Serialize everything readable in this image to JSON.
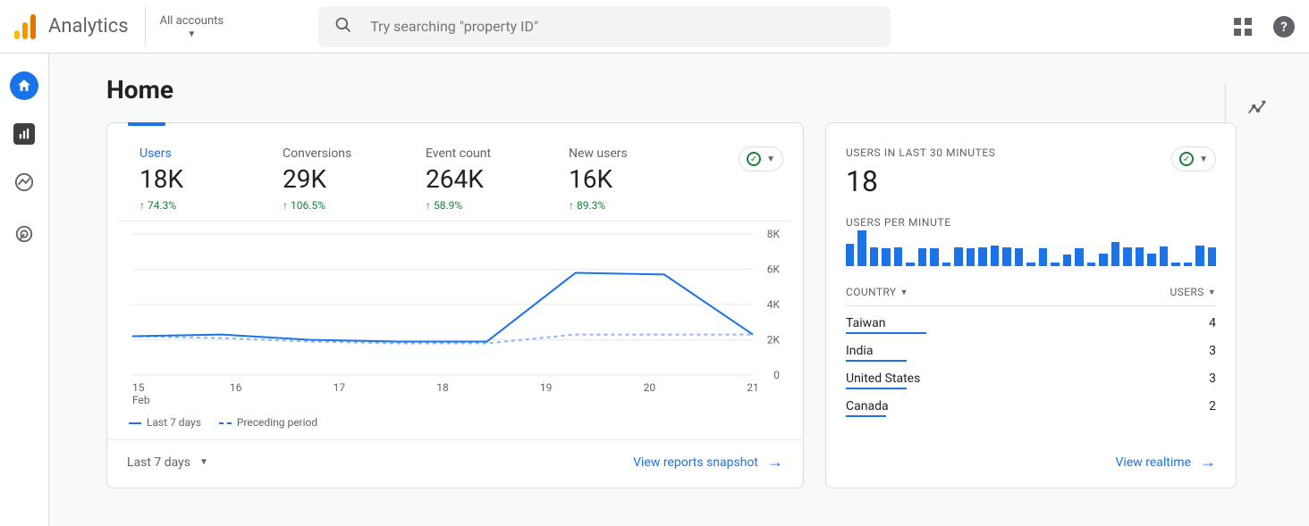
{
  "header": {
    "product_name": "Analytics",
    "account_switcher_label": "All accounts",
    "search_placeholder": "Try searching \"property ID\""
  },
  "page": {
    "title": "Home"
  },
  "overview_card": {
    "metrics": [
      {
        "label": "Users",
        "value": "18K",
        "delta": "74.3%",
        "active": true
      },
      {
        "label": "Conversions",
        "value": "29K",
        "delta": "106.5%",
        "active": false
      },
      {
        "label": "Event count",
        "value": "264K",
        "delta": "58.9%",
        "active": false
      },
      {
        "label": "New users",
        "value": "16K",
        "delta": "89.3%",
        "active": false
      }
    ],
    "chart": {
      "type": "line",
      "y_ticks": [
        "0",
        "2K",
        "4K",
        "6K",
        "8K"
      ],
      "ylim": [
        0,
        8000
      ],
      "x_ticks": [
        "15",
        "16",
        "17",
        "18",
        "19",
        "20",
        "21"
      ],
      "x_month_label": "Feb",
      "series_current": [
        2200,
        2300,
        2000,
        1900,
        1900,
        5800,
        5700,
        2300
      ],
      "series_previous": [
        2200,
        2100,
        1900,
        1800,
        1800,
        2300,
        2300,
        2300
      ],
      "current_color": "#1a73e8",
      "previous_color": "#8ab4f8",
      "grid_color": "#e8eaed",
      "background_color": "#ffffff"
    },
    "legend_current": "Last 7 days",
    "legend_previous": "Preceding period",
    "period_picker_label": "Last 7 days",
    "footer_link": "View reports snapshot"
  },
  "realtime_card": {
    "header_label": "USERS IN LAST 30 MINUTES",
    "big_number": "18",
    "spark_label": "USERS PER MINUTE",
    "spark_values": [
      24,
      38,
      20,
      19,
      20,
      4,
      19,
      19,
      4,
      20,
      19,
      20,
      22,
      20,
      19,
      4,
      19,
      4,
      12,
      19,
      4,
      13,
      26,
      20,
      20,
      13,
      21,
      4,
      4,
      22,
      20
    ],
    "spark_color": "#1a73e8",
    "table": {
      "col_country": "COUNTRY",
      "col_users": "USERS",
      "max_users": 4,
      "rows": [
        {
          "country": "Taiwan",
          "users": "4",
          "n": 4
        },
        {
          "country": "India",
          "users": "3",
          "n": 3
        },
        {
          "country": "United States",
          "users": "3",
          "n": 3
        },
        {
          "country": "Canada",
          "users": "2",
          "n": 2
        }
      ]
    },
    "footer_link": "View realtime"
  }
}
